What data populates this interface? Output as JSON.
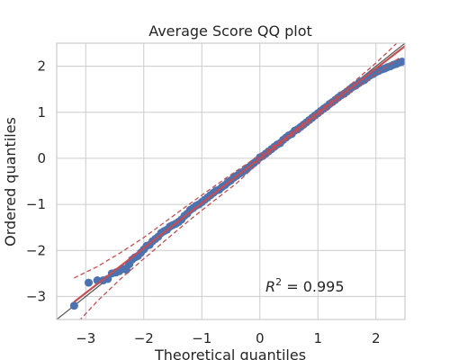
{
  "chart_data": {
    "type": "scatter",
    "title": "Average Score QQ plot",
    "xlabel": "Theoretical quantiles",
    "ylabel": "Ordered quantiles",
    "xlim": [
      -3.5,
      2.5
    ],
    "ylim": [
      -3.5,
      2.5
    ],
    "xticks": [
      -3,
      -2,
      -1,
      0,
      1,
      2
    ],
    "yticks": [
      -3,
      -2,
      -1,
      0,
      1,
      2
    ],
    "xtick_labels": [
      "−3",
      "−2",
      "−1",
      "0",
      "1",
      "2"
    ],
    "ytick_labels": [
      "−3",
      "−2",
      "−1",
      "0",
      "1",
      "2"
    ],
    "grid": true,
    "annotation": {
      "prefix": "R",
      "superscript": "2",
      "text": " = 0.995"
    },
    "fit_line": {
      "slope": 0.975,
      "intercept": 0.0
    },
    "reference_line": {
      "slope": 1.0,
      "intercept": 0.0
    },
    "confidence_band": {
      "x": [
        -3.2,
        -2.8,
        -2.4,
        -2.0,
        -1.6,
        -1.2,
        -0.8,
        -0.4,
        0.0,
        0.4,
        0.8,
        1.2,
        1.6,
        2.0,
        2.4
      ],
      "upper": [
        -2.6,
        -2.35,
        -2.05,
        -1.72,
        -1.35,
        -0.98,
        -0.62,
        -0.27,
        0.07,
        0.42,
        0.82,
        1.22,
        1.64,
        2.07,
        2.55
      ],
      "lower": [
        -3.65,
        -3.1,
        -2.62,
        -2.18,
        -1.75,
        -1.33,
        -0.93,
        -0.54,
        -0.07,
        0.35,
        0.72,
        1.1,
        1.47,
        1.83,
        2.18
      ]
    },
    "points": {
      "x": [
        -3.2,
        -2.95,
        -2.8,
        -2.7,
        -2.62,
        -2.55,
        -2.48,
        -2.42,
        -2.36,
        -2.3,
        -2.25,
        -2.2,
        -2.15,
        -2.1,
        -2.05,
        -2.0,
        -1.95,
        -1.9,
        -1.85,
        -1.8,
        -1.75,
        -1.7,
        -1.65,
        -1.6,
        -1.55,
        -1.5,
        -1.45,
        -1.4,
        -1.35,
        -1.3,
        -1.25,
        -1.2,
        -1.15,
        -1.1,
        -1.05,
        -1.0,
        -0.95,
        -0.9,
        -0.85,
        -0.8,
        -0.75,
        -0.7,
        -0.65,
        -0.6,
        -0.55,
        -0.5,
        -0.45,
        -0.4,
        -0.35,
        -0.3,
        -0.25,
        -0.2,
        -0.15,
        -0.1,
        -0.05,
        0.0,
        0.05,
        0.1,
        0.15,
        0.2,
        0.25,
        0.3,
        0.35,
        0.4,
        0.45,
        0.5,
        0.55,
        0.6,
        0.65,
        0.7,
        0.75,
        0.8,
        0.85,
        0.9,
        0.95,
        1.0,
        1.05,
        1.1,
        1.15,
        1.2,
        1.25,
        1.3,
        1.35,
        1.4,
        1.45,
        1.5,
        1.55,
        1.6,
        1.65,
        1.7,
        1.75,
        1.8,
        1.85,
        1.9,
        1.95,
        2.0,
        2.05,
        2.1,
        2.15,
        2.2,
        2.25,
        2.3,
        2.35,
        2.4,
        2.45
      ],
      "y": [
        -3.2,
        -2.7,
        -2.65,
        -2.65,
        -2.62,
        -2.5,
        -2.48,
        -2.45,
        -2.4,
        -2.42,
        -2.3,
        -2.2,
        -2.15,
        -2.12,
        -2.05,
        -1.98,
        -1.9,
        -1.88,
        -1.8,
        -1.75,
        -1.7,
        -1.62,
        -1.58,
        -1.55,
        -1.48,
        -1.45,
        -1.42,
        -1.38,
        -1.33,
        -1.25,
        -1.2,
        -1.12,
        -1.08,
        -1.03,
        -1.0,
        -0.95,
        -0.9,
        -0.85,
        -0.8,
        -0.75,
        -0.7,
        -0.68,
        -0.62,
        -0.58,
        -0.52,
        -0.48,
        -0.42,
        -0.38,
        -0.33,
        -0.3,
        -0.25,
        -0.2,
        -0.15,
        -0.1,
        -0.05,
        0.02,
        0.05,
        0.1,
        0.15,
        0.2,
        0.25,
        0.3,
        0.33,
        0.4,
        0.45,
        0.5,
        0.53,
        0.6,
        0.63,
        0.68,
        0.73,
        0.78,
        0.83,
        0.88,
        0.93,
        0.98,
        1.03,
        1.08,
        1.12,
        1.18,
        1.22,
        1.27,
        1.32,
        1.37,
        1.4,
        1.45,
        1.5,
        1.55,
        1.58,
        1.63,
        1.67,
        1.7,
        1.75,
        1.8,
        1.83,
        1.87,
        1.9,
        1.93,
        1.95,
        1.98,
        2.0,
        2.03,
        2.05,
        2.08,
        2.1
      ]
    },
    "colors": {
      "points": "#4c72b0",
      "fit_line": "#c44e52",
      "band": "#c44e52",
      "reference_line": "#555555",
      "grid": "#cccccc",
      "spine": "#cccccc"
    }
  }
}
